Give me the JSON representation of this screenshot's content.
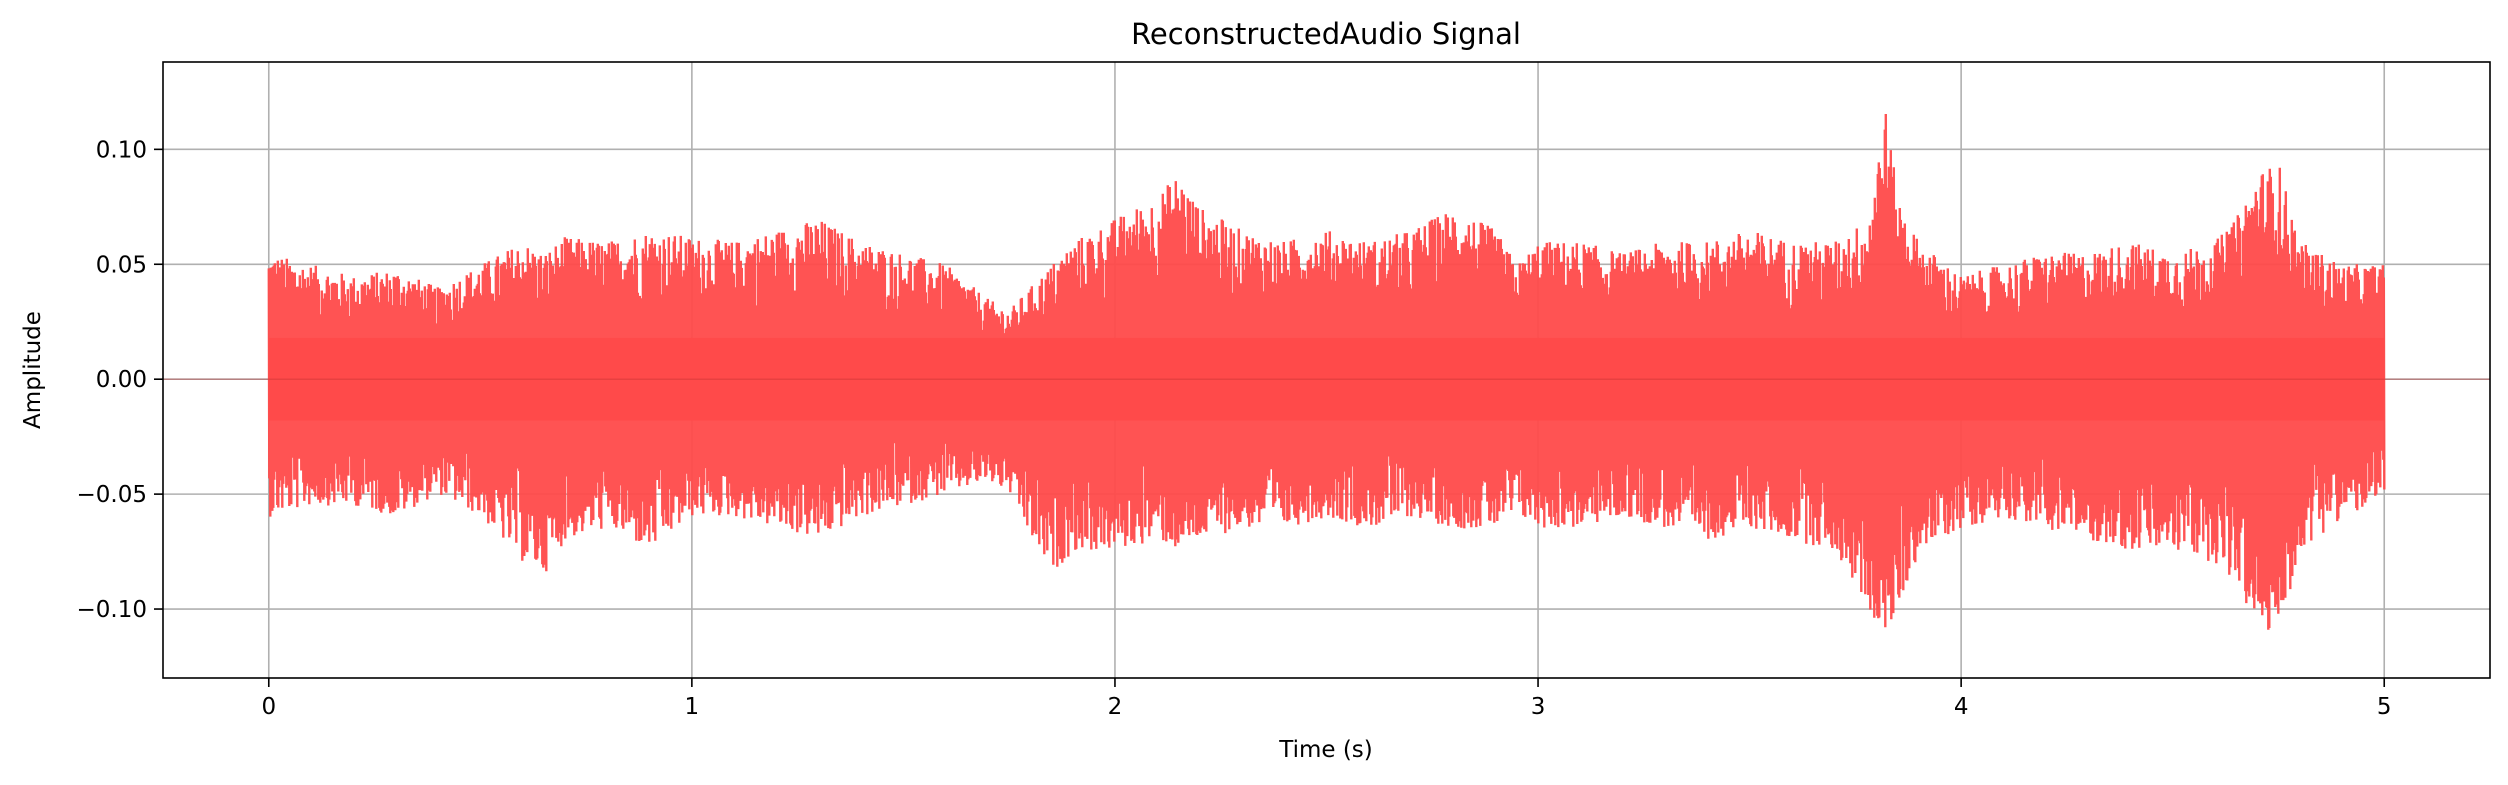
{
  "chart_data": {
    "type": "line",
    "title": "ReconstructedAudio Signal",
    "xlabel": "Time (s)",
    "ylabel": "Amplitude",
    "xlim": [
      -0.25,
      5.25
    ],
    "ylim": [
      -0.13,
      0.138
    ],
    "grid": true,
    "x_ticks": [
      0,
      1,
      2,
      3,
      4,
      5
    ],
    "x_tick_labels": [
      "0",
      "1",
      "2",
      "3",
      "4",
      "5"
    ],
    "y_ticks": [
      -0.1,
      -0.05,
      0.0,
      0.05,
      0.1
    ],
    "y_tick_labels": [
      "−0.10",
      "−0.05",
      "0.00",
      "0.05",
      "0.10"
    ],
    "series": [
      {
        "color": "#ff4a4a",
        "envelope_x": [
          0.0,
          0.1,
          0.2,
          0.3,
          0.4,
          0.5,
          0.6,
          0.65,
          0.7,
          0.8,
          0.9,
          1.0,
          1.1,
          1.2,
          1.3,
          1.4,
          1.5,
          1.6,
          1.7,
          1.75,
          1.8,
          1.85,
          1.9,
          2.0,
          2.1,
          2.15,
          2.2,
          2.3,
          2.4,
          2.5,
          2.6,
          2.7,
          2.8,
          2.9,
          2.95,
          3.0,
          3.1,
          3.2,
          3.3,
          3.4,
          3.5,
          3.6,
          3.7,
          3.78,
          3.82,
          3.85,
          3.9,
          4.0,
          4.1,
          4.2,
          4.3,
          4.4,
          4.5,
          4.6,
          4.65,
          4.7,
          4.75,
          4.8,
          4.9,
          5.0
        ],
        "envelope_max": [
          0.055,
          0.05,
          0.045,
          0.048,
          0.04,
          0.05,
          0.06,
          0.055,
          0.062,
          0.06,
          0.065,
          0.062,
          0.06,
          0.065,
          0.07,
          0.06,
          0.055,
          0.05,
          0.035,
          0.03,
          0.04,
          0.05,
          0.06,
          0.07,
          0.08,
          0.09,
          0.075,
          0.065,
          0.06,
          0.065,
          0.06,
          0.065,
          0.075,
          0.065,
          0.05,
          0.06,
          0.06,
          0.055,
          0.06,
          0.06,
          0.065,
          0.06,
          0.06,
          0.07,
          0.12,
          0.08,
          0.06,
          0.045,
          0.05,
          0.055,
          0.055,
          0.06,
          0.055,
          0.06,
          0.07,
          0.09,
          0.095,
          0.06,
          0.05,
          0.05
        ],
        "envelope_min": [
          -0.06,
          -0.055,
          -0.055,
          -0.06,
          -0.05,
          -0.06,
          -0.08,
          -0.085,
          -0.07,
          -0.065,
          -0.075,
          -0.06,
          -0.06,
          -0.065,
          -0.07,
          -0.06,
          -0.055,
          -0.05,
          -0.045,
          -0.05,
          -0.07,
          -0.085,
          -0.075,
          -0.075,
          -0.07,
          -0.075,
          -0.07,
          -0.065,
          -0.065,
          -0.06,
          -0.065,
          -0.06,
          -0.065,
          -0.065,
          -0.06,
          -0.065,
          -0.065,
          -0.06,
          -0.065,
          -0.07,
          -0.065,
          -0.07,
          -0.075,
          -0.1,
          -0.115,
          -0.1,
          -0.075,
          -0.065,
          -0.06,
          -0.065,
          -0.07,
          -0.075,
          -0.075,
          -0.08,
          -0.09,
          -0.11,
          -0.112,
          -0.075,
          -0.06,
          -0.055
        ]
      }
    ]
  }
}
